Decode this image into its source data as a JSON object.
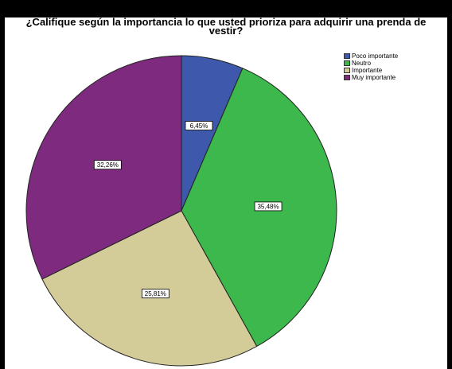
{
  "chart_data": {
    "type": "pie",
    "title": "¿Califique según la importancia lo que usted prioriza para adquirir una prenda de vestir?",
    "title_lines": [
      "¿Califique según la importancia lo que usted prioriza para adquirir una prenda de",
      "vestir?"
    ],
    "categories": [
      "Poco importante",
      "Neutro",
      "Importante",
      "Muy importante"
    ],
    "values": [
      6.45,
      35.48,
      25.81,
      32.26
    ],
    "labels": [
      "6,45%",
      "35,48%",
      "25,81%",
      "32,26%"
    ],
    "colors": [
      "#3e58ac",
      "#3cb84c",
      "#d4cc98",
      "#7e2a7e"
    ],
    "legend_position": "top-right",
    "start_angle": "12 o'clock",
    "direction": "clockwise"
  }
}
